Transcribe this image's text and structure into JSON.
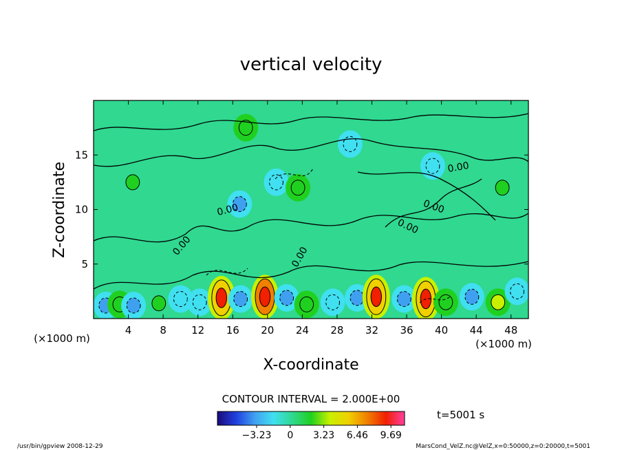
{
  "chart_data": {
    "type": "heatmap",
    "title": "vertical velocity",
    "xlabel": "X-coordinate",
    "ylabel": "Z-coordinate",
    "x_unit_left": "(×1000 m)",
    "x_unit_right": "(×1000 m)",
    "xlim": [
      0,
      50
    ],
    "ylim": [
      0,
      20
    ],
    "x_ticks": [
      4,
      8,
      12,
      16,
      20,
      24,
      28,
      32,
      36,
      40,
      44,
      48
    ],
    "y_ticks": [
      5,
      10,
      15
    ],
    "contour_label": "0.00",
    "contour_interval_text": "CONTOUR INTERVAL = 2.000E+00",
    "colorbar": {
      "ticks": [
        -3.23,
        0,
        3.23,
        6.46,
        9.69
      ],
      "tick_labels": [
        "−3.23",
        "0",
        "3.23",
        "6.46",
        "9.69"
      ],
      "range": [
        -7,
        11
      ],
      "colors": [
        "#1a0a7a",
        "#2040e0",
        "#40a0f0",
        "#40e0f0",
        "#30d890",
        "#20d020",
        "#c8f000",
        "#f0d000",
        "#f08000",
        "#f02000",
        "#ff40a0"
      ]
    },
    "time_label": "t=5001 s",
    "cells": [
      {
        "x": 1.4,
        "z": 1.2,
        "v": -3.5
      },
      {
        "x": 3.0,
        "z": 1.3,
        "v": 2.0
      },
      {
        "x": 4.6,
        "z": 1.2,
        "v": -3.2
      },
      {
        "x": 7.5,
        "z": 1.4,
        "v": 1.8
      },
      {
        "x": 10.0,
        "z": 1.8,
        "v": -2.5
      },
      {
        "x": 12.2,
        "z": 1.5,
        "v": -2.2
      },
      {
        "x": 14.7,
        "z": 1.9,
        "v": 9.0
      },
      {
        "x": 16.9,
        "z": 1.8,
        "v": -4.0
      },
      {
        "x": 19.7,
        "z": 2.0,
        "v": 9.5
      },
      {
        "x": 22.2,
        "z": 1.9,
        "v": -3.8
      },
      {
        "x": 24.5,
        "z": 1.3,
        "v": 2.0
      },
      {
        "x": 27.5,
        "z": 1.5,
        "v": -1.5
      },
      {
        "x": 30.3,
        "z": 1.9,
        "v": -3.0
      },
      {
        "x": 32.5,
        "z": 2.0,
        "v": 9.0
      },
      {
        "x": 35.7,
        "z": 1.8,
        "v": -3.5
      },
      {
        "x": 38.2,
        "z": 1.8,
        "v": 9.2
      },
      {
        "x": 40.5,
        "z": 1.5,
        "v": 2.5
      },
      {
        "x": 43.5,
        "z": 2.0,
        "v": -4.0
      },
      {
        "x": 46.5,
        "z": 1.5,
        "v": 3.0
      },
      {
        "x": 48.7,
        "z": 2.5,
        "v": -2.5
      },
      {
        "x": 16.8,
        "z": 10.5,
        "v": -3.0
      },
      {
        "x": 21.0,
        "z": 12.5,
        "v": -2.5
      },
      {
        "x": 23.5,
        "z": 12.0,
        "v": 2.5
      },
      {
        "x": 29.5,
        "z": 16.0,
        "v": -2.0
      },
      {
        "x": 17.5,
        "z": 17.5,
        "v": 2.0
      },
      {
        "x": 4.5,
        "z": 12.5,
        "v": 1.5
      },
      {
        "x": 39.0,
        "z": 14.0,
        "v": -1.5
      },
      {
        "x": 47.0,
        "z": 12.0,
        "v": 1.5
      }
    ]
  },
  "footer": {
    "left": "/usr/bin/gpview   2008-12-29",
    "right": "MarsCond_VelZ.nc@VelZ,x=0:50000,z=0:20000,t=5001"
  }
}
